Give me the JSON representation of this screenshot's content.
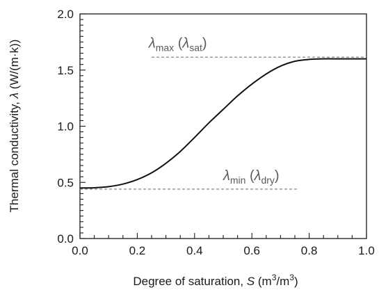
{
  "chart_data": {
    "type": "line",
    "xlabel_prefix": "Degree of saturation, ",
    "xlabel_symbol": "S",
    "xlabel_unit_open": " (m",
    "xlabel_unit_sup1": "3",
    "xlabel_unit_mid": "/m",
    "xlabel_unit_sup2": "3",
    "xlabel_unit_close": ")",
    "ylabel_prefix": "Thermal conductivity, ",
    "ylabel_symbol": "λ",
    "ylabel_unit": " (W/(m·k))",
    "xlim": [
      0.0,
      1.0
    ],
    "ylim": [
      0.0,
      2.0
    ],
    "x_ticks": [
      "0.0",
      "0.2",
      "0.4",
      "0.6",
      "0.8",
      "1.0"
    ],
    "y_ticks": [
      "0.0",
      "0.5",
      "1.0",
      "1.5",
      "2.0"
    ],
    "grid": false,
    "series": [
      {
        "style": "solid",
        "color": "#111111",
        "x": [
          0.0,
          0.05,
          0.1,
          0.15,
          0.2,
          0.25,
          0.3,
          0.35,
          0.4,
          0.45,
          0.5,
          0.55,
          0.6,
          0.65,
          0.7,
          0.75,
          0.8,
          0.85,
          0.9,
          0.95,
          1.0
        ],
        "y": [
          0.45,
          0.452,
          0.462,
          0.485,
          0.525,
          0.585,
          0.67,
          0.775,
          0.9,
          1.03,
          1.15,
          1.27,
          1.375,
          1.465,
          1.535,
          1.578,
          1.595,
          1.6,
          1.6,
          1.6,
          1.6
        ]
      }
    ],
    "reference_lines": [
      {
        "name": "max",
        "y": 1.615,
        "x": [
          0.25,
          1.0
        ],
        "style": "dashed",
        "color": "#7a7a7a"
      },
      {
        "name": "min",
        "y": 0.44,
        "x": [
          0.0,
          0.76
        ],
        "style": "dashed",
        "color": "#7a7a7a"
      }
    ],
    "annotations": [
      {
        "name": "max",
        "sym": "λ",
        "sub": "max",
        "paren_open": " (",
        "sym2": "λ",
        "sub2": "sat",
        "paren_close": ")",
        "x": 0.24,
        "y": 1.7
      },
      {
        "name": "min",
        "sym": "λ",
        "sub": "min",
        "paren_open": " (",
        "sym2": "λ",
        "sub2": "dry",
        "paren_close": ")",
        "x": 0.5,
        "y": 0.52
      }
    ]
  }
}
